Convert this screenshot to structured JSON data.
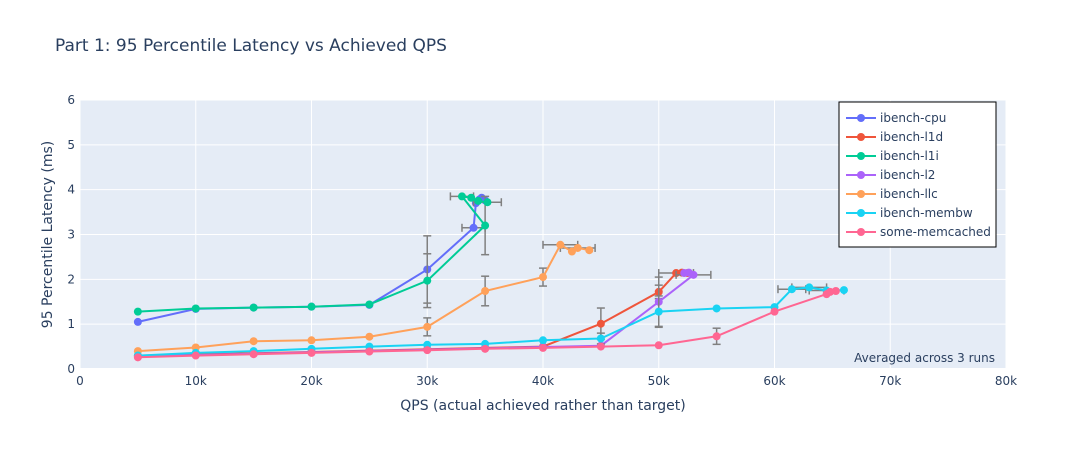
{
  "chart_data": {
    "type": "line",
    "title": "Part 1: 95 Percentile Latency vs Achieved QPS",
    "xlabel": "QPS (actual achieved rather than target)",
    "ylabel": "95 Percentile Latency (ms)",
    "xlim": [
      0,
      80000
    ],
    "ylim": [
      0,
      6
    ],
    "x_ticks": [
      0,
      10000,
      20000,
      30000,
      40000,
      50000,
      60000,
      70000,
      80000
    ],
    "x_tick_labels": [
      "0",
      "10k",
      "20k",
      "30k",
      "40k",
      "50k",
      "60k",
      "70k",
      "80k"
    ],
    "y_ticks": [
      0,
      1,
      2,
      3,
      4,
      5,
      6
    ],
    "y_tick_labels": [
      "0",
      "1",
      "2",
      "3",
      "4",
      "5",
      "6"
    ],
    "grid": true,
    "legend_position": "top-right",
    "annotation": "Averaged across 3 runs",
    "error_bar_color": "#808080",
    "series": [
      {
        "name": "ibench-cpu",
        "color": "#636efa",
        "points": [
          {
            "x": 5000,
            "y": 1.05
          },
          {
            "x": 10000,
            "y": 1.34
          },
          {
            "x": 15000,
            "y": 1.37
          },
          {
            "x": 20000,
            "y": 1.39
          },
          {
            "x": 25000,
            "y": 1.43
          },
          {
            "x": 30000,
            "y": 2.22,
            "yerr": 0.75
          },
          {
            "x": 34000,
            "y": 3.15,
            "xerr": 1000
          },
          {
            "x": 34200,
            "y": 3.7
          },
          {
            "x": 34500,
            "y": 3.78
          },
          {
            "x": 34700,
            "y": 3.82
          },
          {
            "x": 35000,
            "y": 3.76
          }
        ]
      },
      {
        "name": "ibench-l1d",
        "color": "#ef553b",
        "points": [
          {
            "x": 5000,
            "y": 0.3
          },
          {
            "x": 10000,
            "y": 0.33
          },
          {
            "x": 15000,
            "y": 0.35
          },
          {
            "x": 20000,
            "y": 0.38
          },
          {
            "x": 25000,
            "y": 0.41
          },
          {
            "x": 30000,
            "y": 0.44
          },
          {
            "x": 35000,
            "y": 0.47
          },
          {
            "x": 40000,
            "y": 0.5
          },
          {
            "x": 45000,
            "y": 1.01,
            "yerr": 0.35
          },
          {
            "x": 50000,
            "y": 1.72,
            "yerr": 0.15
          },
          {
            "x": 51500,
            "y": 2.14,
            "xerr": 1500
          },
          {
            "x": 52000,
            "y": 2.15
          },
          {
            "x": 52500,
            "y": 2.14
          }
        ]
      },
      {
        "name": "ibench-l1i",
        "color": "#00cc96",
        "points": [
          {
            "x": 5000,
            "y": 1.28
          },
          {
            "x": 10000,
            "y": 1.35
          },
          {
            "x": 15000,
            "y": 1.37
          },
          {
            "x": 20000,
            "y": 1.39
          },
          {
            "x": 25000,
            "y": 1.44
          },
          {
            "x": 30000,
            "y": 1.97,
            "yerr": 0.6
          },
          {
            "x": 35000,
            "y": 3.2,
            "yerr": 0.65
          },
          {
            "x": 33000,
            "y": 3.85,
            "xerr": 1000
          },
          {
            "x": 33800,
            "y": 3.82
          },
          {
            "x": 34400,
            "y": 3.75
          },
          {
            "x": 35200,
            "y": 3.72,
            "xerr": 1200
          }
        ]
      },
      {
        "name": "ibench-l2",
        "color": "#ab63fa",
        "points": [
          {
            "x": 5000,
            "y": 0.28
          },
          {
            "x": 10000,
            "y": 0.31
          },
          {
            "x": 15000,
            "y": 0.34
          },
          {
            "x": 20000,
            "y": 0.37
          },
          {
            "x": 25000,
            "y": 0.4
          },
          {
            "x": 30000,
            "y": 0.43
          },
          {
            "x": 35000,
            "y": 0.46
          },
          {
            "x": 40000,
            "y": 0.49
          },
          {
            "x": 45000,
            "y": 0.52
          },
          {
            "x": 50000,
            "y": 1.5,
            "yerr": 0.55
          },
          {
            "x": 53000,
            "y": 2.1,
            "xerr": 1500
          },
          {
            "x": 52600,
            "y": 2.15
          },
          {
            "x": 52200,
            "y": 2.14
          }
        ]
      },
      {
        "name": "ibench-llc",
        "color": "#ffa15a",
        "points": [
          {
            "x": 5000,
            "y": 0.4
          },
          {
            "x": 10000,
            "y": 0.48
          },
          {
            "x": 15000,
            "y": 0.62
          },
          {
            "x": 20000,
            "y": 0.64
          },
          {
            "x": 25000,
            "y": 0.72
          },
          {
            "x": 30000,
            "y": 0.94,
            "yerr": 0.2
          },
          {
            "x": 35000,
            "y": 1.74,
            "yerr": 0.33
          },
          {
            "x": 40000,
            "y": 2.05,
            "yerr": 0.2
          },
          {
            "x": 41500,
            "y": 2.77,
            "xerr": 1500
          },
          {
            "x": 42500,
            "y": 2.62
          },
          {
            "x": 43000,
            "y": 2.7,
            "xerr": 1500
          },
          {
            "x": 44000,
            "y": 2.65
          }
        ]
      },
      {
        "name": "ibench-membw",
        "color": "#19d3f3",
        "points": [
          {
            "x": 5000,
            "y": 0.3
          },
          {
            "x": 10000,
            "y": 0.36
          },
          {
            "x": 15000,
            "y": 0.4
          },
          {
            "x": 20000,
            "y": 0.45
          },
          {
            "x": 25000,
            "y": 0.5
          },
          {
            "x": 30000,
            "y": 0.54
          },
          {
            "x": 35000,
            "y": 0.56
          },
          {
            "x": 40000,
            "y": 0.64
          },
          {
            "x": 45000,
            "y": 0.68,
            "yerr": 0.12
          },
          {
            "x": 50000,
            "y": 1.28,
            "yerr": 0.35
          },
          {
            "x": 55000,
            "y": 1.35
          },
          {
            "x": 60000,
            "y": 1.38
          },
          {
            "x": 61500,
            "y": 1.78,
            "xerr": 1200
          },
          {
            "x": 63000,
            "y": 1.82,
            "xerr": 1500
          },
          {
            "x": 64500,
            "y": 1.75,
            "xerr": 1500
          },
          {
            "x": 66000,
            "y": 1.76
          }
        ]
      },
      {
        "name": "some-memcached",
        "color": "#ff6692",
        "points": [
          {
            "x": 5000,
            "y": 0.26
          },
          {
            "x": 10000,
            "y": 0.3
          },
          {
            "x": 15000,
            "y": 0.33
          },
          {
            "x": 20000,
            "y": 0.36
          },
          {
            "x": 25000,
            "y": 0.39
          },
          {
            "x": 30000,
            "y": 0.42
          },
          {
            "x": 35000,
            "y": 0.45
          },
          {
            "x": 40000,
            "y": 0.47
          },
          {
            "x": 45000,
            "y": 0.5
          },
          {
            "x": 50000,
            "y": 0.53
          },
          {
            "x": 55000,
            "y": 0.73,
            "yerr": 0.18
          },
          {
            "x": 60000,
            "y": 1.28
          },
          {
            "x": 64500,
            "y": 1.67
          },
          {
            "x": 65300,
            "y": 1.74
          },
          {
            "x": 64800,
            "y": 1.72
          }
        ]
      }
    ]
  }
}
